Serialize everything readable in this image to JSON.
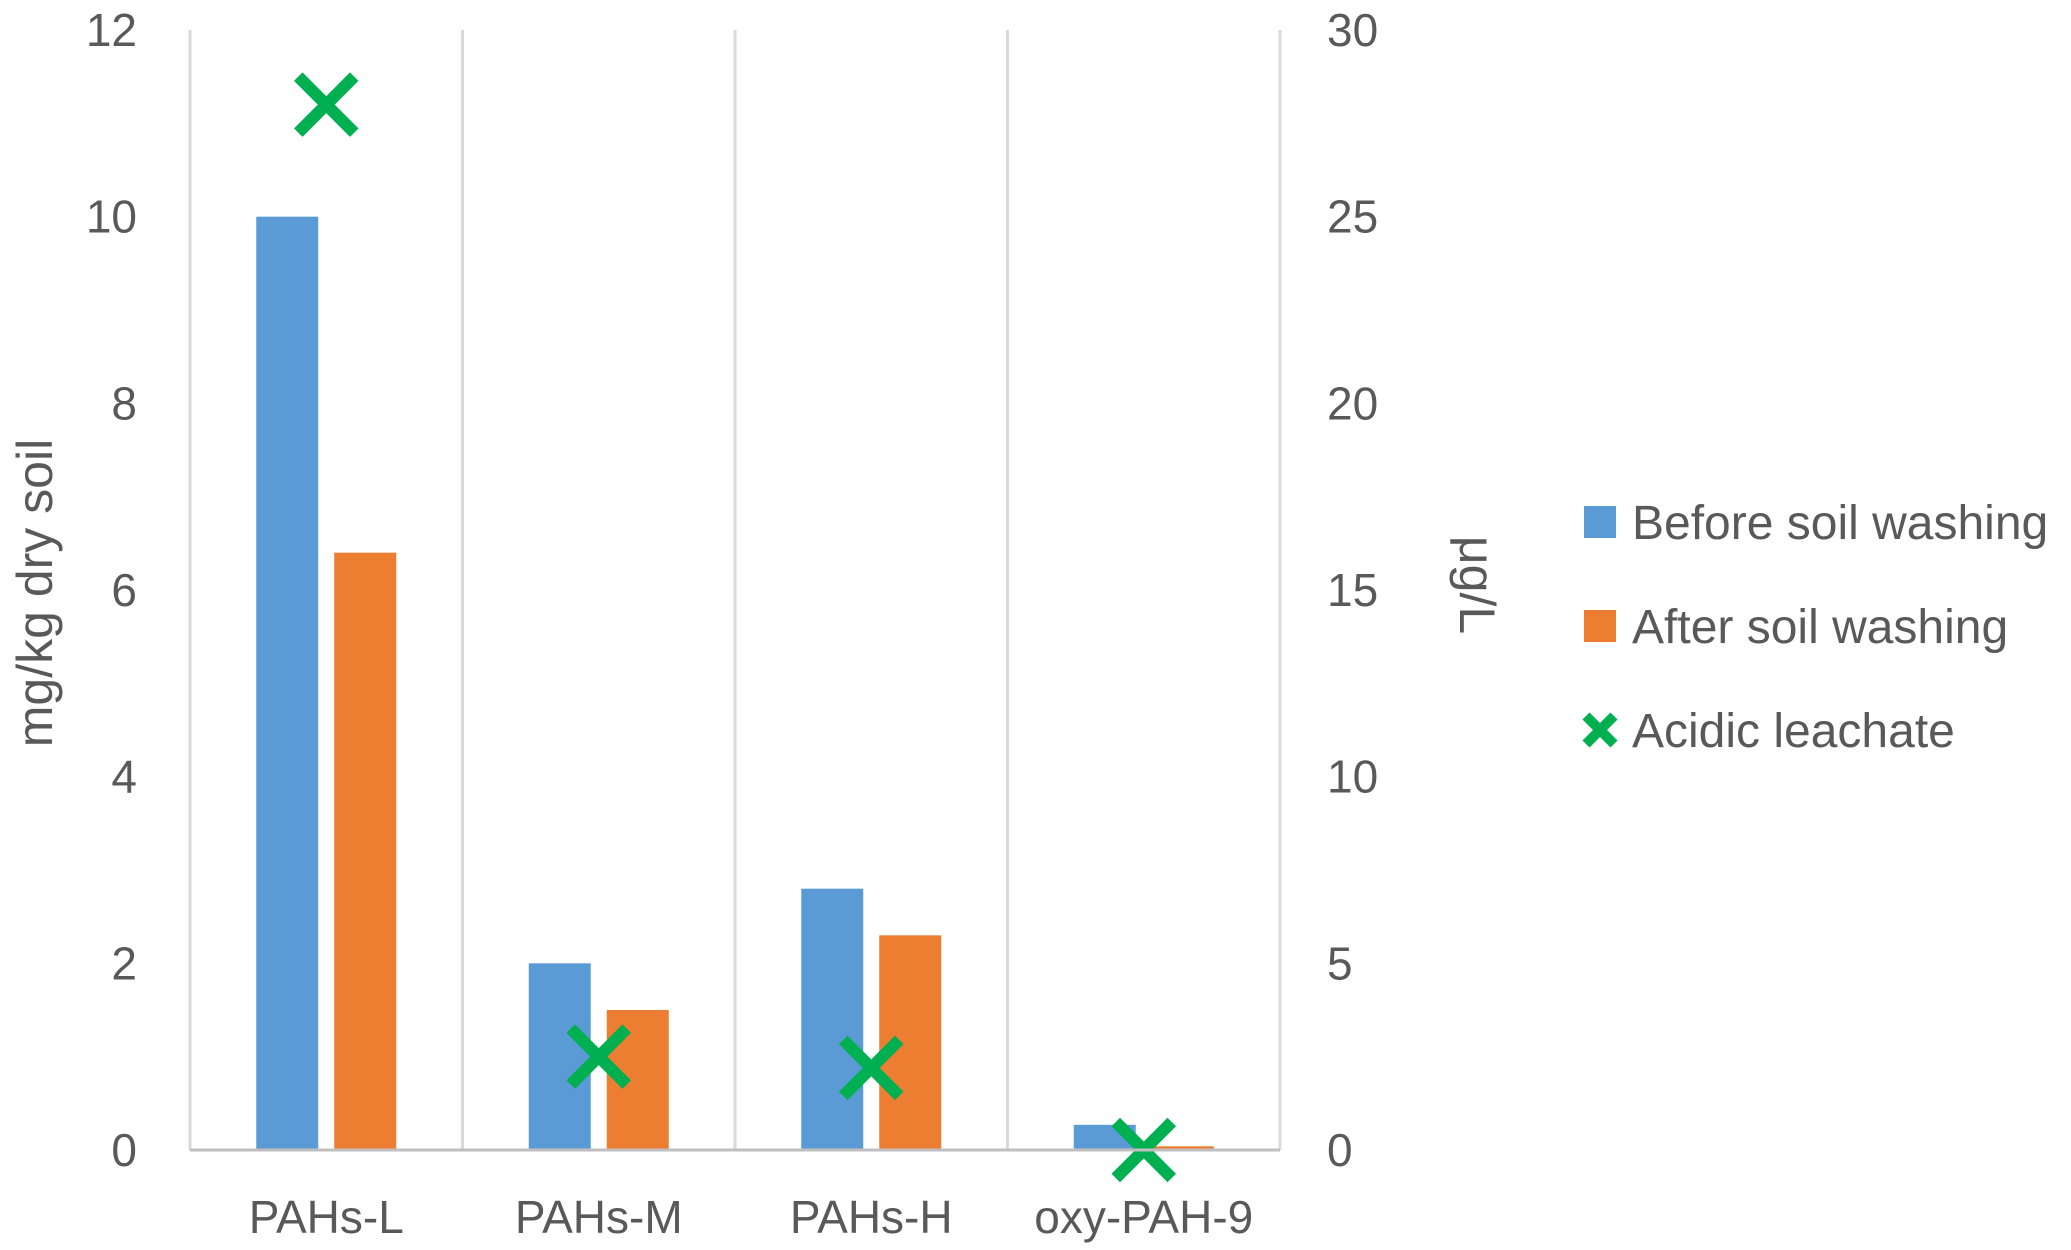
{
  "chart_data": {
    "type": "bar",
    "categories": [
      "PAHs-L",
      "PAHs-M",
      "PAHs-H",
      "oxy-PAH-9"
    ],
    "series": [
      {
        "name": "Before soil washing",
        "axis": "left",
        "kind": "bar",
        "color": "#5B9BD5",
        "values": [
          10.0,
          2.0,
          2.8,
          0.27
        ]
      },
      {
        "name": "After soil washing",
        "axis": "left",
        "kind": "bar",
        "color": "#ED7D31",
        "values": [
          6.4,
          1.5,
          2.3,
          0.04
        ]
      },
      {
        "name": "Acidic leachate",
        "axis": "right",
        "kind": "marker-x",
        "color": "#00B050",
        "values": [
          28.0,
          2.5,
          2.2,
          0.0
        ]
      }
    ],
    "ylabel": "mg/kg dry soil",
    "y2label": "μg/L",
    "ylim": [
      0,
      12
    ],
    "y2lim": [
      0,
      30
    ],
    "yticks": [
      "0",
      "2",
      "4",
      "6",
      "8",
      "10",
      "12"
    ],
    "y2ticks": [
      "0",
      "5",
      "10",
      "15",
      "20",
      "25",
      "30"
    ],
    "grid": "vertical category separators",
    "legend_position": "right"
  }
}
